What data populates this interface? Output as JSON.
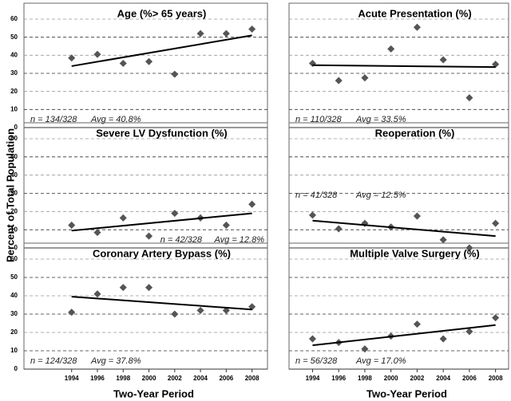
{
  "ylabel": "Percent of Total Population",
  "chart_data": [
    {
      "type": "scatter",
      "title": "Age (%> 65 years)",
      "x": [
        1994,
        1996,
        1998,
        2000,
        2002,
        2004,
        2006,
        2008
      ],
      "values": [
        38.5,
        40.5,
        35.5,
        36.5,
        29.5,
        52,
        52,
        54.5
      ],
      "trend": {
        "x": [
          1994,
          2008
        ],
        "values": [
          34,
          51
        ]
      },
      "n_text": "n = 134/328",
      "avg_text": "Avg = 40.8%",
      "annotation_corner": "lower left",
      "xlim": [
        1990.3,
        2009.2
      ],
      "ylim": [
        0,
        60
      ],
      "yticks": [
        0,
        10,
        20,
        30,
        40,
        50,
        60
      ],
      "ytick_labels": true,
      "grid": true,
      "color": "#555555"
    },
    {
      "type": "scatter",
      "title": "Acute Presentation (%)",
      "x": [
        1994,
        1996,
        1998,
        2000,
        2002,
        2004,
        2006,
        2008
      ],
      "values": [
        35.5,
        26,
        27.5,
        43.5,
        55.5,
        37.5,
        16.5,
        35
      ],
      "trend": {
        "x": [
          1994,
          2008
        ],
        "values": [
          34.5,
          33.5
        ]
      },
      "n_text": "n = 110/328",
      "avg_text": "Avg = 33.5%",
      "annotation_corner": "lower left",
      "xlim": [
        1992.2,
        2009
      ],
      "ylim": [
        0,
        60
      ],
      "yticks": [
        0,
        10,
        20,
        30,
        40,
        50,
        60
      ],
      "ytick_labels": false,
      "grid": true,
      "color": "#555555"
    },
    {
      "type": "scatter",
      "title": "Severe LV Dysfunction (%)",
      "x": [
        1994,
        1996,
        1998,
        2000,
        2002,
        2004,
        2006,
        2008
      ],
      "values": [
        12.5,
        8.5,
        16.5,
        6.5,
        19,
        16.5,
        12.5,
        24
      ],
      "trend": {
        "x": [
          1994,
          2008
        ],
        "values": [
          9.5,
          19
        ]
      },
      "n_text": "n = 42/328",
      "avg_text": "Avg = 12.8%",
      "annotation_corner": "lower right",
      "xlim": [
        1990.3,
        2009.2
      ],
      "ylim": [
        0,
        60
      ],
      "yticks": [
        0,
        10,
        20,
        30,
        40,
        50,
        60
      ],
      "ytick_labels": true,
      "grid": true,
      "color": "#555555"
    },
    {
      "type": "scatter",
      "title": "Reoperation (%)",
      "x": [
        1994,
        1996,
        1998,
        2000,
        2002,
        2004,
        2006,
        2008
      ],
      "values": [
        18,
        10.5,
        13.5,
        11.5,
        17.5,
        4.5,
        0,
        13.5
      ],
      "trend": {
        "x": [
          1994,
          2008
        ],
        "values": [
          15,
          6.5
        ]
      },
      "n_text": "n = 41/328",
      "avg_text": "Avg = 12.5%",
      "annotation_corner": "middle left",
      "xlim": [
        1992.2,
        2009
      ],
      "ylim": [
        0,
        60
      ],
      "yticks": [
        0,
        10,
        20,
        30,
        40,
        50,
        60
      ],
      "ytick_labels": false,
      "grid": true,
      "color": "#555555"
    },
    {
      "type": "scatter",
      "title": "Coronary Artery Bypass (%)",
      "x": [
        1994,
        1996,
        1998,
        2000,
        2002,
        2004,
        2006,
        2008
      ],
      "values": [
        31,
        41,
        44.5,
        44.5,
        30,
        32,
        32,
        34
      ],
      "trend": {
        "x": [
          1994,
          2008
        ],
        "values": [
          39.5,
          32.5
        ]
      },
      "n_text": "n = 124/328",
      "avg_text": "Avg = 37.8%",
      "annotation_corner": "lower left",
      "xlim": [
        1990.3,
        2009.2
      ],
      "ylim": [
        0,
        60
      ],
      "yticks": [
        0,
        10,
        20,
        30,
        40,
        50,
        60
      ],
      "ytick_labels": true,
      "xticks": [
        1994,
        1996,
        1998,
        2000,
        2002,
        2004,
        2006,
        2008
      ],
      "xlabel": "Two-Year Period",
      "grid": true,
      "color": "#555555"
    },
    {
      "type": "scatter",
      "title": "Multiple Valve Surgery (%)",
      "x": [
        1994,
        1996,
        1998,
        2000,
        2002,
        2004,
        2006,
        2008
      ],
      "values": [
        16.5,
        14.5,
        11,
        18,
        24.5,
        16.5,
        20.5,
        28
      ],
      "trend": {
        "x": [
          1994,
          2008
        ],
        "values": [
          13,
          24
        ]
      },
      "n_text": "n = 56/328",
      "avg_text": "Avg = 17.0%",
      "annotation_corner": "lower left",
      "xlim": [
        1992.2,
        2009
      ],
      "ylim": [
        0,
        60
      ],
      "yticks": [
        0,
        10,
        20,
        30,
        40,
        50,
        60
      ],
      "ytick_labels": false,
      "xticks": [
        1994,
        1996,
        1998,
        2000,
        2002,
        2004,
        2006,
        2008
      ],
      "xlabel": "Two-Year Period",
      "grid": true,
      "color": "#555555"
    }
  ]
}
